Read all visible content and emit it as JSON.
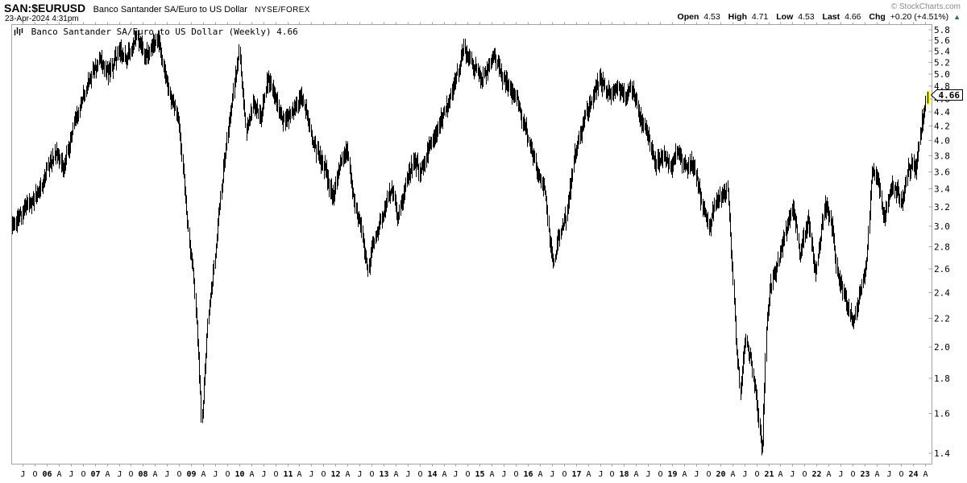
{
  "header": {
    "symbol": "SAN:$EURUSD",
    "company": "Banco Santander SA/Euro to US Dollar",
    "exchange": "NYSE/FOREX",
    "datetime": "23-Apr-2024 4:31pm",
    "copyright": "© StockCharts.com",
    "quote": {
      "open_label": "Open",
      "open": "4.53",
      "high_label": "High",
      "high": "4.71",
      "low_label": "Low",
      "low": "4.53",
      "last_label": "Last",
      "last": "4.66",
      "chg_label": "Chg",
      "chg": "+0.20 (+4.51%)",
      "direction_icon": "▲"
    }
  },
  "legend": {
    "icon": "mini-chart-icon",
    "text": "Banco Santander SA/Euro to US Dollar (Weekly) 4.66"
  },
  "price_tag": "4.66",
  "colors": {
    "bar": "#000000",
    "frame": "#a3a3a3",
    "tick": "#a3a3a3",
    "copyright_gray": "#8a8a8a",
    "up_green": "#157a45",
    "highlight_yellow": "#ffff00",
    "tag_bg": "#ffffff",
    "tag_border": "#000000"
  },
  "chart_data": {
    "type": "bar",
    "subtype": "weekly-ohlc-hl-bars",
    "title": "Banco Santander SA/Euro to US Dollar (Weekly)",
    "scale": "log",
    "ylim": [
      1.4,
      5.8
    ],
    "y_ticks": [
      5.8,
      5.6,
      5.4,
      5.2,
      5.0,
      4.8,
      4.6,
      4.4,
      4.2,
      4.0,
      3.8,
      3.6,
      3.4,
      3.2,
      3.0,
      2.8,
      2.6,
      2.4,
      2.2,
      2.0,
      1.8,
      1.6,
      1.4
    ],
    "x_start": 2005.28,
    "x_end": 2024.31,
    "bars_per_year": 52.2,
    "grid": false,
    "legend_position": "top-left-inside",
    "last_bar": {
      "open": 4.53,
      "high": 4.71,
      "low": 4.53,
      "close": 4.66
    },
    "anchors": [
      [
        2005.28,
        3.02
      ],
      [
        2005.45,
        3.1
      ],
      [
        2005.6,
        3.22
      ],
      [
        2005.75,
        3.3
      ],
      [
        2005.9,
        3.45
      ],
      [
        2006.05,
        3.7
      ],
      [
        2006.2,
        3.85
      ],
      [
        2006.35,
        3.62
      ],
      [
        2006.55,
        4.2
      ],
      [
        2006.75,
        4.6
      ],
      [
        2006.9,
        4.95
      ],
      [
        2007.1,
        5.25
      ],
      [
        2007.3,
        5.02
      ],
      [
        2007.5,
        5.4
      ],
      [
        2007.65,
        5.25
      ],
      [
        2007.87,
        5.7
      ],
      [
        2008.05,
        5.3
      ],
      [
        2008.2,
        5.45
      ],
      [
        2008.32,
        5.6
      ],
      [
        2008.45,
        5.05
      ],
      [
        2008.6,
        4.55
      ],
      [
        2008.72,
        4.4
      ],
      [
        2008.85,
        3.5
      ],
      [
        2008.95,
        2.9
      ],
      [
        2009.05,
        2.55
      ],
      [
        2009.15,
        1.95
      ],
      [
        2009.22,
        1.56
      ],
      [
        2009.35,
        2.2
      ],
      [
        2009.5,
        2.7
      ],
      [
        2009.62,
        3.35
      ],
      [
        2009.75,
        4.05
      ],
      [
        2009.87,
        4.65
      ],
      [
        2010.0,
        5.42
      ],
      [
        2010.14,
        4.1
      ],
      [
        2010.3,
        4.55
      ],
      [
        2010.45,
        4.3
      ],
      [
        2010.6,
        4.95
      ],
      [
        2010.75,
        4.6
      ],
      [
        2010.9,
        4.25
      ],
      [
        2011.05,
        4.35
      ],
      [
        2011.31,
        4.64
      ],
      [
        2011.5,
        4.1
      ],
      [
        2011.65,
        3.8
      ],
      [
        2011.8,
        3.6
      ],
      [
        2011.95,
        3.3
      ],
      [
        2012.1,
        3.65
      ],
      [
        2012.25,
        3.9
      ],
      [
        2012.4,
        3.2
      ],
      [
        2012.55,
        2.95
      ],
      [
        2012.68,
        2.58
      ],
      [
        2012.8,
        2.85
      ],
      [
        2012.95,
        3.05
      ],
      [
        2013.18,
        3.42
      ],
      [
        2013.3,
        3.08
      ],
      [
        2013.5,
        3.55
      ],
      [
        2013.65,
        3.73
      ],
      [
        2013.78,
        3.58
      ],
      [
        2014.0,
        3.98
      ],
      [
        2014.22,
        4.33
      ],
      [
        2014.45,
        4.75
      ],
      [
        2014.67,
        5.45
      ],
      [
        2014.88,
        5.14
      ],
      [
        2015.05,
        4.9
      ],
      [
        2015.28,
        5.33
      ],
      [
        2015.55,
        4.84
      ],
      [
        2015.77,
        4.6
      ],
      [
        2016.0,
        4.05
      ],
      [
        2016.2,
        3.59
      ],
      [
        2016.35,
        3.38
      ],
      [
        2016.52,
        2.62
      ],
      [
        2016.65,
        2.9
      ],
      [
        2016.8,
        3.1
      ],
      [
        2016.97,
        3.8
      ],
      [
        2017.2,
        4.39
      ],
      [
        2017.35,
        4.6
      ],
      [
        2017.5,
        4.95
      ],
      [
        2017.62,
        4.72
      ],
      [
        2017.76,
        4.68
      ],
      [
        2017.87,
        4.81
      ],
      [
        2018.04,
        4.6
      ],
      [
        2018.13,
        4.83
      ],
      [
        2018.31,
        4.39
      ],
      [
        2018.51,
        4.05
      ],
      [
        2018.65,
        3.67
      ],
      [
        2018.81,
        3.81
      ],
      [
        2018.98,
        3.67
      ],
      [
        2019.13,
        3.87
      ],
      [
        2019.27,
        3.65
      ],
      [
        2019.43,
        3.7
      ],
      [
        2019.6,
        3.3
      ],
      [
        2019.77,
        2.98
      ],
      [
        2019.9,
        3.25
      ],
      [
        2020.05,
        3.35
      ],
      [
        2020.15,
        3.4
      ],
      [
        2020.25,
        2.6
      ],
      [
        2020.33,
        2.0
      ],
      [
        2020.42,
        1.72
      ],
      [
        2020.52,
        2.08
      ],
      [
        2020.62,
        1.93
      ],
      [
        2020.72,
        1.75
      ],
      [
        2020.8,
        1.55
      ],
      [
        2020.87,
        1.4
      ],
      [
        2020.95,
        2.1
      ],
      [
        2021.05,
        2.45
      ],
      [
        2021.2,
        2.65
      ],
      [
        2021.35,
        2.95
      ],
      [
        2021.52,
        3.23
      ],
      [
        2021.66,
        2.72
      ],
      [
        2021.83,
        3.07
      ],
      [
        2021.98,
        2.55
      ],
      [
        2022.1,
        2.95
      ],
      [
        2022.18,
        3.22
      ],
      [
        2022.33,
        3.0
      ],
      [
        2022.42,
        2.58
      ],
      [
        2022.55,
        2.4
      ],
      [
        2022.67,
        2.28
      ],
      [
        2022.75,
        2.16
      ],
      [
        2022.92,
        2.42
      ],
      [
        2023.05,
        2.68
      ],
      [
        2023.15,
        3.62
      ],
      [
        2023.28,
        3.55
      ],
      [
        2023.4,
        3.05
      ],
      [
        2023.55,
        3.45
      ],
      [
        2023.67,
        3.38
      ],
      [
        2023.77,
        3.22
      ],
      [
        2023.9,
        3.6
      ],
      [
        2024.0,
        3.7
      ],
      [
        2024.06,
        3.58
      ],
      [
        2024.13,
        3.95
      ],
      [
        2024.2,
        4.3
      ],
      [
        2024.28,
        4.53
      ],
      [
        2024.31,
        4.66
      ]
    ],
    "x_ticks": [
      [
        "J",
        2005.5,
        0
      ],
      [
        "O",
        2005.75,
        0
      ],
      [
        "06",
        2006,
        1
      ],
      [
        "A",
        2006.25,
        0
      ],
      [
        "J",
        2006.5,
        0
      ],
      [
        "O",
        2006.75,
        0
      ],
      [
        "07",
        2007,
        1
      ],
      [
        "A",
        2007.25,
        0
      ],
      [
        "J",
        2007.5,
        0
      ],
      [
        "O",
        2007.75,
        0
      ],
      [
        "08",
        2008,
        1
      ],
      [
        "A",
        2008.25,
        0
      ],
      [
        "J",
        2008.5,
        0
      ],
      [
        "O",
        2008.75,
        0
      ],
      [
        "09",
        2009,
        1
      ],
      [
        "A",
        2009.25,
        0
      ],
      [
        "J",
        2009.5,
        0
      ],
      [
        "O",
        2009.75,
        0
      ],
      [
        "10",
        2010,
        1
      ],
      [
        "A",
        2010.25,
        0
      ],
      [
        "J",
        2010.5,
        0
      ],
      [
        "O",
        2010.75,
        0
      ],
      [
        "11",
        2011,
        1
      ],
      [
        "A",
        2011.25,
        0
      ],
      [
        "J",
        2011.5,
        0
      ],
      [
        "O",
        2011.75,
        0
      ],
      [
        "12",
        2012,
        1
      ],
      [
        "A",
        2012.25,
        0
      ],
      [
        "J",
        2012.5,
        0
      ],
      [
        "O",
        2012.75,
        0
      ],
      [
        "13",
        2013,
        1
      ],
      [
        "A",
        2013.25,
        0
      ],
      [
        "J",
        2013.5,
        0
      ],
      [
        "O",
        2013.75,
        0
      ],
      [
        "14",
        2014,
        1
      ],
      [
        "A",
        2014.25,
        0
      ],
      [
        "J",
        2014.5,
        0
      ],
      [
        "O",
        2014.75,
        0
      ],
      [
        "15",
        2015,
        1
      ],
      [
        "A",
        2015.25,
        0
      ],
      [
        "J",
        2015.5,
        0
      ],
      [
        "O",
        2015.75,
        0
      ],
      [
        "16",
        2016,
        1
      ],
      [
        "A",
        2016.25,
        0
      ],
      [
        "J",
        2016.5,
        0
      ],
      [
        "O",
        2016.75,
        0
      ],
      [
        "17",
        2017,
        1
      ],
      [
        "A",
        2017.25,
        0
      ],
      [
        "J",
        2017.5,
        0
      ],
      [
        "O",
        2017.75,
        0
      ],
      [
        "18",
        2018,
        1
      ],
      [
        "A",
        2018.25,
        0
      ],
      [
        "J",
        2018.5,
        0
      ],
      [
        "O",
        2018.75,
        0
      ],
      [
        "19",
        2019,
        1
      ],
      [
        "A",
        2019.25,
        0
      ],
      [
        "J",
        2019.5,
        0
      ],
      [
        "O",
        2019.75,
        0
      ],
      [
        "20",
        2020,
        1
      ],
      [
        "A",
        2020.25,
        0
      ],
      [
        "J",
        2020.5,
        0
      ],
      [
        "O",
        2020.75,
        0
      ],
      [
        "21",
        2021,
        1
      ],
      [
        "A",
        2021.25,
        0
      ],
      [
        "J",
        2021.5,
        0
      ],
      [
        "O",
        2021.75,
        0
      ],
      [
        "22",
        2022,
        1
      ],
      [
        "A",
        2022.25,
        0
      ],
      [
        "J",
        2022.5,
        0
      ],
      [
        "O",
        2022.75,
        0
      ],
      [
        "23",
        2023,
        1
      ],
      [
        "A",
        2023.25,
        0
      ],
      [
        "J",
        2023.5,
        0
      ],
      [
        "O",
        2023.75,
        0
      ],
      [
        "24",
        2024,
        1
      ],
      [
        "A",
        2024.25,
        0
      ]
    ],
    "noise": {
      "seed": 123456789,
      "jitter": 0.014,
      "range_min": 0.012,
      "range_rand": 0.026
    }
  }
}
